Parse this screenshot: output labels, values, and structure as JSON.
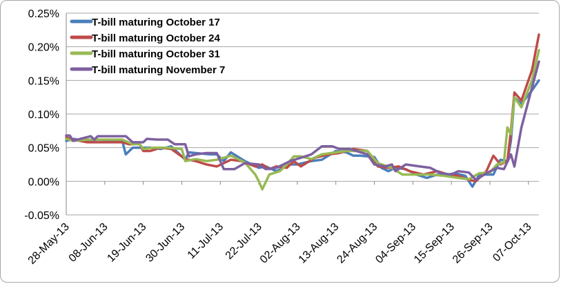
{
  "chart_data": {
    "type": "line",
    "title": "",
    "xlabel": "",
    "ylabel": "",
    "ylim": [
      -0.05,
      0.25
    ],
    "yticks": [
      "0.25%",
      "0.20%",
      "0.15%",
      "0.10%",
      "0.05%",
      "0.00%",
      "-0.05%"
    ],
    "ytick_values": [
      0.25,
      0.2,
      0.15,
      0.1,
      0.05,
      0.0,
      -0.05
    ],
    "xlim": [
      "2013-05-28",
      "2013-10-10"
    ],
    "xticks": [
      "28-May-13",
      "08-Jun-13",
      "19-Jun-13",
      "30-Jun-13",
      "11-Jul-13",
      "22-Jul-13",
      "02-Aug-13",
      "13-Aug-13",
      "24-Aug-13",
      "04-Sep-13",
      "15-Sep-13",
      "26-Sep-13",
      "07-Oct-13"
    ],
    "xtick_dates": [
      "2013-05-28",
      "2013-06-08",
      "2013-06-19",
      "2013-06-30",
      "2013-07-11",
      "2013-07-22",
      "2013-08-02",
      "2013-08-13",
      "2013-08-24",
      "2013-09-04",
      "2013-09-15",
      "2013-09-26",
      "2013-10-07"
    ],
    "legend_position": "top-left",
    "grid": "horizontal",
    "series": [
      {
        "name": "T-bill maturing October 17",
        "color": "#4a7ebb",
        "points": [
          [
            "2013-05-28",
            0.06
          ],
          [
            "2013-05-30",
            0.063
          ],
          [
            "2013-06-03",
            0.06
          ],
          [
            "2013-06-06",
            0.062
          ],
          [
            "2013-06-10",
            0.06
          ],
          [
            "2013-06-13",
            0.06
          ],
          [
            "2013-06-14",
            0.04
          ],
          [
            "2013-06-16",
            0.05
          ],
          [
            "2013-06-18",
            0.05
          ],
          [
            "2013-06-21",
            0.05
          ],
          [
            "2013-06-24",
            0.048
          ],
          [
            "2013-06-27",
            0.052
          ],
          [
            "2013-07-01",
            0.032
          ],
          [
            "2013-07-02",
            0.043
          ],
          [
            "2013-07-08",
            0.04
          ],
          [
            "2013-07-10",
            0.04
          ],
          [
            "2013-07-12",
            0.03
          ],
          [
            "2013-07-14",
            0.043
          ],
          [
            "2013-07-18",
            0.03
          ],
          [
            "2013-07-22",
            0.02
          ],
          [
            "2013-07-24",
            0.022
          ],
          [
            "2013-07-27",
            0.015
          ],
          [
            "2013-07-31",
            0.025
          ],
          [
            "2013-08-02",
            0.025
          ],
          [
            "2013-08-06",
            0.03
          ],
          [
            "2013-08-09",
            0.032
          ],
          [
            "2013-08-13",
            0.045
          ],
          [
            "2013-08-16",
            0.043
          ],
          [
            "2013-08-18",
            0.038
          ],
          [
            "2013-08-20",
            0.038
          ],
          [
            "2013-08-24",
            0.036
          ],
          [
            "2013-08-26",
            0.02
          ],
          [
            "2013-08-28",
            0.015
          ],
          [
            "2013-08-30",
            0.02
          ],
          [
            "2013-09-02",
            0.018
          ],
          [
            "2013-09-05",
            0.01
          ],
          [
            "2013-09-08",
            0.005
          ],
          [
            "2013-09-11",
            0.01
          ],
          [
            "2013-09-14",
            0.01
          ],
          [
            "2013-09-16",
            0.012
          ],
          [
            "2013-09-19",
            0.008
          ],
          [
            "2013-09-21",
            -0.008
          ],
          [
            "2013-09-23",
            0.01
          ],
          [
            "2013-09-27",
            0.01
          ],
          [
            "2013-09-29",
            0.032
          ],
          [
            "2013-10-01",
            0.03
          ],
          [
            "2013-10-02",
            0.06
          ],
          [
            "2013-10-03",
            0.125
          ],
          [
            "2013-10-05",
            0.115
          ],
          [
            "2013-10-08",
            0.135
          ],
          [
            "2013-10-10",
            0.15
          ]
        ]
      },
      {
        "name": "T-bill maturing October 24",
        "color": "#be4b48",
        "points": [
          [
            "2013-05-28",
            0.065
          ],
          [
            "2013-05-30",
            0.062
          ],
          [
            "2013-06-03",
            0.058
          ],
          [
            "2013-06-06",
            0.058
          ],
          [
            "2013-06-10",
            0.058
          ],
          [
            "2013-06-13",
            0.058
          ],
          [
            "2013-06-15",
            0.055
          ],
          [
            "2013-06-18",
            0.055
          ],
          [
            "2013-06-19",
            0.045
          ],
          [
            "2013-06-21",
            0.045
          ],
          [
            "2013-06-24",
            0.05
          ],
          [
            "2013-06-27",
            0.048
          ],
          [
            "2013-07-01",
            0.033
          ],
          [
            "2013-07-04",
            0.03
          ],
          [
            "2013-07-07",
            0.025
          ],
          [
            "2013-07-10",
            0.022
          ],
          [
            "2013-07-14",
            0.032
          ],
          [
            "2013-07-17",
            0.03
          ],
          [
            "2013-07-21",
            0.022
          ],
          [
            "2013-07-23",
            0.025
          ],
          [
            "2013-07-25",
            0.018
          ],
          [
            "2013-07-27",
            0.022
          ],
          [
            "2013-07-30",
            0.02
          ],
          [
            "2013-08-01",
            0.03
          ],
          [
            "2013-08-03",
            0.022
          ],
          [
            "2013-08-07",
            0.035
          ],
          [
            "2013-08-11",
            0.04
          ],
          [
            "2013-08-14",
            0.042
          ],
          [
            "2013-08-18",
            0.048
          ],
          [
            "2013-08-22",
            0.045
          ],
          [
            "2013-08-25",
            0.022
          ],
          [
            "2013-08-28",
            0.02
          ],
          [
            "2013-08-31",
            0.022
          ],
          [
            "2013-09-03",
            0.015
          ],
          [
            "2013-09-07",
            0.01
          ],
          [
            "2013-09-11",
            0.015
          ],
          [
            "2013-09-14",
            0.01
          ],
          [
            "2013-09-17",
            0.008
          ],
          [
            "2013-09-20",
            0.002
          ],
          [
            "2013-09-22",
            0.0
          ],
          [
            "2013-09-25",
            0.015
          ],
          [
            "2013-09-27",
            0.038
          ],
          [
            "2013-09-29",
            0.025
          ],
          [
            "2013-10-01",
            0.03
          ],
          [
            "2013-10-02",
            0.075
          ],
          [
            "2013-10-03",
            0.132
          ],
          [
            "2013-10-05",
            0.12
          ],
          [
            "2013-10-08",
            0.165
          ],
          [
            "2013-10-10",
            0.218
          ]
        ]
      },
      {
        "name": "T-bill maturing October 31",
        "color": "#98b954",
        "points": [
          [
            "2013-05-28",
            0.063
          ],
          [
            "2013-05-30",
            0.06
          ],
          [
            "2013-06-03",
            0.062
          ],
          [
            "2013-06-06",
            0.062
          ],
          [
            "2013-06-10",
            0.062
          ],
          [
            "2013-06-13",
            0.062
          ],
          [
            "2013-06-16",
            0.055
          ],
          [
            "2013-06-18",
            0.055
          ],
          [
            "2013-06-19",
            0.048
          ],
          [
            "2013-06-22",
            0.05
          ],
          [
            "2013-06-26",
            0.05
          ],
          [
            "2013-06-30",
            0.048
          ],
          [
            "2013-07-01",
            0.03
          ],
          [
            "2013-07-04",
            0.033
          ],
          [
            "2013-07-07",
            0.03
          ],
          [
            "2013-07-10",
            0.032
          ],
          [
            "2013-07-14",
            0.038
          ],
          [
            "2013-07-18",
            0.028
          ],
          [
            "2013-07-21",
            0.01
          ],
          [
            "2013-07-22",
            0.0
          ],
          [
            "2013-07-23",
            -0.012
          ],
          [
            "2013-07-25",
            0.01
          ],
          [
            "2013-07-28",
            0.015
          ],
          [
            "2013-07-30",
            0.025
          ],
          [
            "2013-08-01",
            0.037
          ],
          [
            "2013-08-03",
            0.037
          ],
          [
            "2013-08-06",
            0.033
          ],
          [
            "2013-08-09",
            0.04
          ],
          [
            "2013-08-13",
            0.043
          ],
          [
            "2013-08-16",
            0.045
          ],
          [
            "2013-08-18",
            0.045
          ],
          [
            "2013-08-22",
            0.045
          ],
          [
            "2013-08-25",
            0.027
          ],
          [
            "2013-08-29",
            0.02
          ],
          [
            "2013-09-01",
            0.01
          ],
          [
            "2013-09-05",
            0.01
          ],
          [
            "2013-09-09",
            0.01
          ],
          [
            "2013-09-13",
            0.008
          ],
          [
            "2013-09-17",
            0.005
          ],
          [
            "2013-09-20",
            0.003
          ],
          [
            "2013-09-23",
            0.012
          ],
          [
            "2013-09-26",
            0.013
          ],
          [
            "2013-09-28",
            0.025
          ],
          [
            "2013-09-30",
            0.028
          ],
          [
            "2013-10-01",
            0.08
          ],
          [
            "2013-10-02",
            0.07
          ],
          [
            "2013-10-03",
            0.125
          ],
          [
            "2013-10-05",
            0.11
          ],
          [
            "2013-10-08",
            0.15
          ],
          [
            "2013-10-10",
            0.195
          ]
        ]
      },
      {
        "name": "T-bill maturing November 7",
        "color": "#7d60a0",
        "points": [
          [
            "2013-05-28",
            0.068
          ],
          [
            "2013-05-29",
            0.068
          ],
          [
            "2013-05-30",
            0.06
          ],
          [
            "2013-06-01",
            0.063
          ],
          [
            "2013-06-04",
            0.067
          ],
          [
            "2013-06-05",
            0.062
          ],
          [
            "2013-06-06",
            0.067
          ],
          [
            "2013-06-09",
            0.067
          ],
          [
            "2013-06-12",
            0.067
          ],
          [
            "2013-06-14",
            0.067
          ],
          [
            "2013-06-16",
            0.058
          ],
          [
            "2013-06-19",
            0.058
          ],
          [
            "2013-06-20",
            0.063
          ],
          [
            "2013-06-23",
            0.062
          ],
          [
            "2013-06-26",
            0.062
          ],
          [
            "2013-06-28",
            0.055
          ],
          [
            "2013-07-01",
            0.055
          ],
          [
            "2013-07-02",
            0.037
          ],
          [
            "2013-07-04",
            0.04
          ],
          [
            "2013-07-07",
            0.042
          ],
          [
            "2013-07-10",
            0.042
          ],
          [
            "2013-07-12",
            0.018
          ],
          [
            "2013-07-15",
            0.018
          ],
          [
            "2013-07-18",
            0.027
          ],
          [
            "2013-07-22",
            0.025
          ],
          [
            "2013-07-24",
            0.018
          ],
          [
            "2013-07-27",
            0.02
          ],
          [
            "2013-07-31",
            0.03
          ],
          [
            "2013-08-03",
            0.035
          ],
          [
            "2013-08-06",
            0.04
          ],
          [
            "2013-08-09",
            0.052
          ],
          [
            "2013-08-12",
            0.052
          ],
          [
            "2013-08-14",
            0.048
          ],
          [
            "2013-08-17",
            0.048
          ],
          [
            "2013-08-22",
            0.04
          ],
          [
            "2013-08-24",
            0.025
          ],
          [
            "2013-08-27",
            0.022
          ],
          [
            "2013-08-29",
            0.025
          ],
          [
            "2013-08-30",
            0.015
          ],
          [
            "2013-09-02",
            0.025
          ],
          [
            "2013-09-06",
            0.022
          ],
          [
            "2013-09-09",
            0.02
          ],
          [
            "2013-09-12",
            0.012
          ],
          [
            "2013-09-15",
            0.01
          ],
          [
            "2013-09-17",
            0.015
          ],
          [
            "2013-09-20",
            0.013
          ],
          [
            "2013-09-22",
            0.002
          ],
          [
            "2013-09-25",
            0.012
          ],
          [
            "2013-09-28",
            0.02
          ],
          [
            "2013-09-30",
            0.018
          ],
          [
            "2013-10-02",
            0.04
          ],
          [
            "2013-10-03",
            0.022
          ],
          [
            "2013-10-05",
            0.08
          ],
          [
            "2013-10-10",
            0.178
          ]
        ]
      }
    ]
  }
}
